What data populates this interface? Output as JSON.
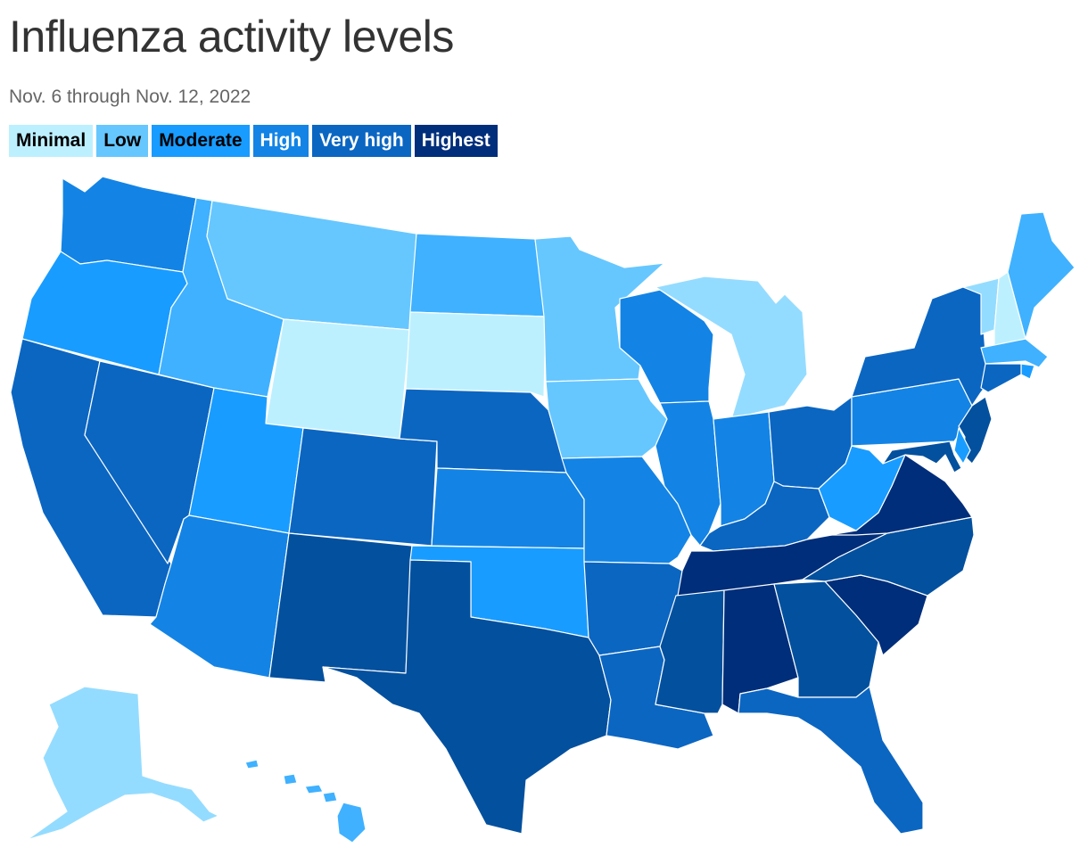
{
  "title": "Influenza activity levels",
  "subtitle": "Nov. 6 through Nov. 12, 2022",
  "legend": [
    {
      "label": "Minimal",
      "color": "#bdf0ff",
      "text_color": "#000000"
    },
    {
      "label": "Low",
      "color": "#66c7ff",
      "text_color": "#000000"
    },
    {
      "label": "Moderate",
      "color": "#199cff",
      "text_color": "#000000"
    },
    {
      "label": "High",
      "color": "#1384e5",
      "text_color": "#ffffff"
    },
    {
      "label": "Very high",
      "color": "#0b66c2",
      "text_color": "#ffffff"
    },
    {
      "label": "Highest",
      "color": "#002e7a",
      "text_color": "#ffffff"
    }
  ],
  "level_colors": {
    "minimal-lo": "#bdf0ff",
    "minimal-hi": "#94dcff",
    "low-lo": "#66c7ff",
    "low-hi": "#3fb1ff",
    "moderate": "#199cff",
    "high": "#1384e5",
    "very-high-lo": "#0b66c2",
    "very-high-hi": "#03509e",
    "highest-lo": "#04418c",
    "highest-hi": "#002e7a"
  },
  "states": {
    "WA": "high",
    "OR": "moderate",
    "CA": "very-high-lo",
    "NV": "very-high-lo",
    "ID": "low-hi",
    "MT": "low-lo",
    "WY": "minimal-lo",
    "UT": "moderate",
    "AZ": "high",
    "CO": "very-high-lo",
    "NM": "very-high-hi",
    "ND": "low-hi",
    "SD": "minimal-lo",
    "NE": "very-high-lo",
    "KS": "high",
    "OK": "moderate",
    "TX": "very-high-hi",
    "MN": "low-lo",
    "IA": "low-lo",
    "MO": "high",
    "AR": "very-high-lo",
    "LA": "very-high-lo",
    "WI": "high",
    "IL": "high",
    "MI": "minimal-hi",
    "IN": "high",
    "OH": "very-high-lo",
    "KY": "very-high-lo",
    "TN": "highest-hi",
    "MS": "very-high-hi",
    "AL": "highest-hi",
    "GA": "very-high-hi",
    "FL": "very-high-lo",
    "SC": "highest-hi",
    "NC": "very-high-hi",
    "VA": "highest-hi",
    "WV": "moderate",
    "PA": "high",
    "NY": "very-high-lo",
    "VT": "minimal-hi",
    "NH": "minimal-lo",
    "ME": "low-hi",
    "MA": "low-hi",
    "RI": "moderate",
    "CT": "very-high-lo",
    "NJ": "very-high-hi",
    "DE": "moderate",
    "MD": "very-high-hi",
    "AK": "minimal-hi",
    "HI": "low-hi"
  }
}
